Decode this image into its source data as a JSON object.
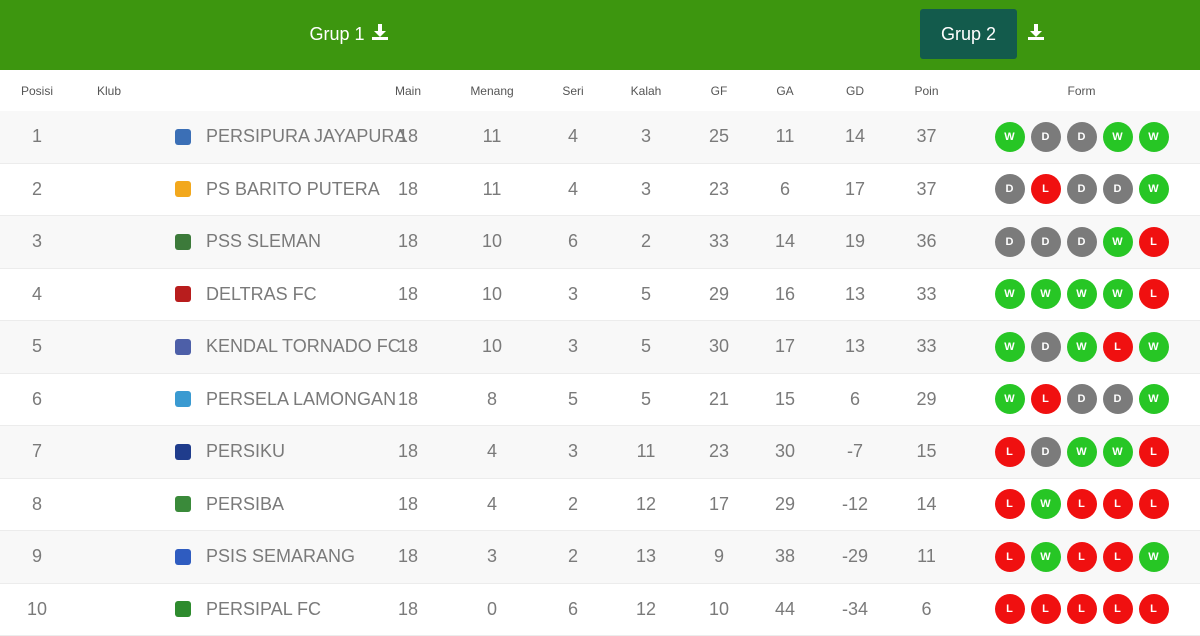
{
  "tabs": [
    {
      "label": "Grup 1",
      "icon": "download-icon",
      "active": false
    },
    {
      "label": "Grup 2",
      "icon": "download-icon",
      "active": true
    }
  ],
  "colors": {
    "header_bg": "#3d960f",
    "active_tab_bg": "#135b4c",
    "win": "#27c625",
    "draw": "#7b7b7b",
    "loss": "#f01010"
  },
  "columns": [
    "Posisi",
    "Klub",
    "Main",
    "Menang",
    "Seri",
    "Kalah",
    "GF",
    "GA",
    "GD",
    "Poin",
    "Form"
  ],
  "rows": [
    {
      "pos": "1",
      "club": "PERSIPURA JAYAPURA",
      "logo_color": "#3b6fb6",
      "main": "18",
      "menang": "11",
      "seri": "4",
      "kalah": "3",
      "gf": "25",
      "ga": "11",
      "gd": "14",
      "poin": "37",
      "form": [
        "W",
        "D",
        "D",
        "W",
        "W"
      ]
    },
    {
      "pos": "2",
      "club": "PS BARITO PUTERA",
      "logo_color": "#f2a81d",
      "main": "18",
      "menang": "11",
      "seri": "4",
      "kalah": "3",
      "gf": "23",
      "ga": "6",
      "gd": "17",
      "poin": "37",
      "form": [
        "D",
        "L",
        "D",
        "D",
        "W"
      ]
    },
    {
      "pos": "3",
      "club": "PSS SLEMAN",
      "logo_color": "#3c7a3a",
      "main": "18",
      "menang": "10",
      "seri": "6",
      "kalah": "2",
      "gf": "33",
      "ga": "14",
      "gd": "19",
      "poin": "36",
      "form": [
        "D",
        "D",
        "D",
        "W",
        "L"
      ]
    },
    {
      "pos": "4",
      "club": "DELTRAS FC",
      "logo_color": "#b81d1d",
      "main": "18",
      "menang": "10",
      "seri": "3",
      "kalah": "5",
      "gf": "29",
      "ga": "16",
      "gd": "13",
      "poin": "33",
      "form": [
        "W",
        "W",
        "W",
        "W",
        "L"
      ]
    },
    {
      "pos": "5",
      "club": "KENDAL TORNADO FC",
      "logo_color": "#4d5fa8",
      "main": "18",
      "menang": "10",
      "seri": "3",
      "kalah": "5",
      "gf": "30",
      "ga": "17",
      "gd": "13",
      "poin": "33",
      "form": [
        "W",
        "D",
        "W",
        "L",
        "W"
      ]
    },
    {
      "pos": "6",
      "club": "PERSELA LAMONGAN",
      "logo_color": "#3a9ad1",
      "main": "18",
      "menang": "8",
      "seri": "5",
      "kalah": "5",
      "gf": "21",
      "ga": "15",
      "gd": "6",
      "poin": "29",
      "form": [
        "W",
        "L",
        "D",
        "D",
        "W"
      ]
    },
    {
      "pos": "7",
      "club": "PERSIKU",
      "logo_color": "#1f3c8c",
      "main": "18",
      "menang": "4",
      "seri": "3",
      "kalah": "11",
      "gf": "23",
      "ga": "30",
      "gd": "-7",
      "poin": "15",
      "form": [
        "L",
        "D",
        "W",
        "W",
        "L"
      ]
    },
    {
      "pos": "8",
      "club": "PERSIBA",
      "logo_color": "#3a8a3a",
      "main": "18",
      "menang": "4",
      "seri": "2",
      "kalah": "12",
      "gf": "17",
      "ga": "29",
      "gd": "-12",
      "poin": "14",
      "form": [
        "L",
        "W",
        "L",
        "L",
        "L"
      ]
    },
    {
      "pos": "9",
      "club": "PSIS SEMARANG",
      "logo_color": "#2f5cc0",
      "main": "18",
      "menang": "3",
      "seri": "2",
      "kalah": "13",
      "gf": "9",
      "ga": "38",
      "gd": "-29",
      "poin": "11",
      "form": [
        "L",
        "W",
        "L",
        "L",
        "W"
      ]
    },
    {
      "pos": "10",
      "club": "PERSIPAL FC",
      "logo_color": "#2e8b2e",
      "main": "18",
      "menang": "0",
      "seri": "6",
      "kalah": "12",
      "gf": "10",
      "ga": "44",
      "gd": "-34",
      "poin": "6",
      "form": [
        "L",
        "L",
        "L",
        "L",
        "L"
      ]
    }
  ]
}
